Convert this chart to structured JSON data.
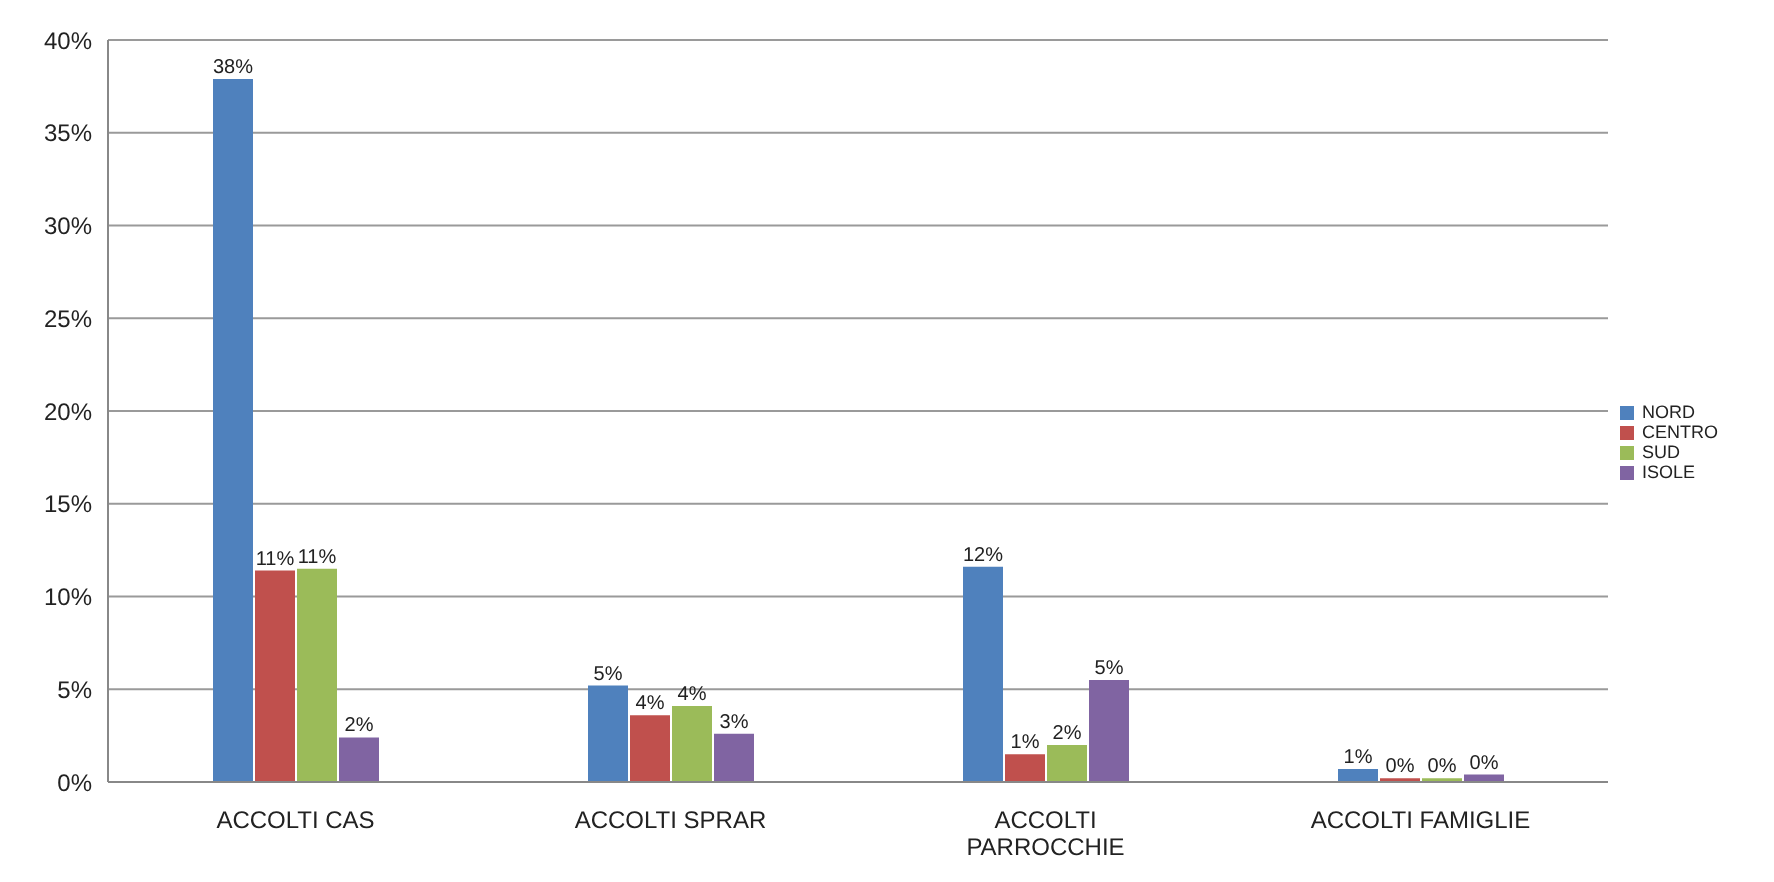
{
  "chart_data": {
    "type": "bar",
    "categories": [
      "ACCOLTI CAS",
      "ACCOLTI SPRAR",
      "ACCOLTI PARROCCHIE",
      "ACCOLTI FAMIGLIE"
    ],
    "series": [
      {
        "name": "NORD",
        "color": "#4f81bd",
        "values": [
          37.9,
          5.2,
          11.6,
          0.7
        ],
        "value_labels": [
          "38%",
          "5%",
          "12%",
          "1%"
        ]
      },
      {
        "name": "CENTRO",
        "color": "#c0504d",
        "values": [
          11.4,
          3.6,
          1.5,
          0.2
        ],
        "value_labels": [
          "11%",
          "4%",
          "1%",
          "0%"
        ]
      },
      {
        "name": "SUD",
        "color": "#9bbb59",
        "values": [
          11.5,
          4.1,
          2.0,
          0.2
        ],
        "value_labels": [
          "11%",
          "4%",
          "2%",
          "0%"
        ]
      },
      {
        "name": "ISOLE",
        "color": "#8064a2",
        "values": [
          2.4,
          2.6,
          5.5,
          0.4
        ],
        "value_labels": [
          "2%",
          "3%",
          "5%",
          "0%"
        ]
      }
    ],
    "ylim": [
      0,
      40
    ],
    "yticks": [
      {
        "value": 0,
        "label": "0%"
      },
      {
        "value": 5,
        "label": "5%"
      },
      {
        "value": 10,
        "label": "10%"
      },
      {
        "value": 15,
        "label": "15%"
      },
      {
        "value": 20,
        "label": "20%"
      },
      {
        "value": 25,
        "label": "25%"
      },
      {
        "value": 30,
        "label": "30%"
      },
      {
        "value": 35,
        "label": "35%"
      },
      {
        "value": 40,
        "label": "40%"
      }
    ],
    "grid": "y",
    "legend": "right"
  }
}
